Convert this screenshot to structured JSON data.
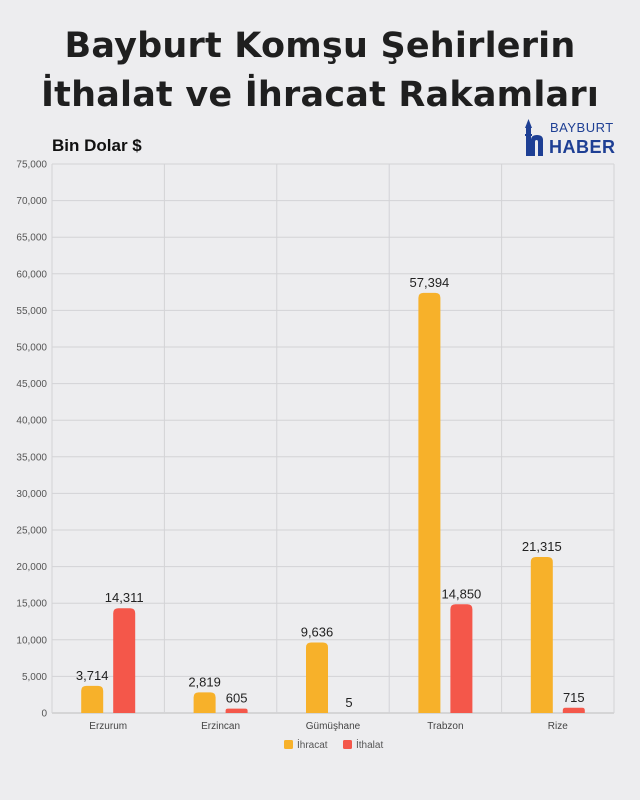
{
  "header": {
    "title_line1": "Bayburt Komşu Şehirlerin",
    "title_line2": "İthalat ve İhracat Rakamları"
  },
  "logo": {
    "top": "BAYBURT",
    "bottom": "HABER"
  },
  "chart_data": {
    "type": "bar",
    "title": "Bayburt Komşu Şehirlerin İthalat ve İhracat Rakamları",
    "ylabel": "Bin Dolar $",
    "categories": [
      "Erzurum",
      "Erzincan",
      "Gümüşhane",
      "Trabzon",
      "Rize"
    ],
    "series": [
      {
        "name": "İhracat",
        "color": "#f7b12a",
        "values": [
          3714,
          2819,
          9636,
          57394,
          21315
        ],
        "labels": [
          "3,714",
          "2,819",
          "9,636",
          "57,394",
          "21,315"
        ]
      },
      {
        "name": "İthalat",
        "color": "#f4574a",
        "values": [
          14311,
          605,
          5,
          14850,
          715
        ],
        "labels": [
          "14,311",
          "605",
          "5",
          "14,850",
          "715"
        ]
      }
    ],
    "ylim": [
      0,
      75000
    ],
    "yticks": [
      "0",
      "5,000",
      "10,000",
      "15,000",
      "20,000",
      "25,000",
      "30,000",
      "35,000",
      "40,000",
      "45,000",
      "50,000",
      "55,000",
      "60,000",
      "65,000",
      "70,000",
      "75,000"
    ],
    "grid": true,
    "legend_position": "bottom"
  }
}
